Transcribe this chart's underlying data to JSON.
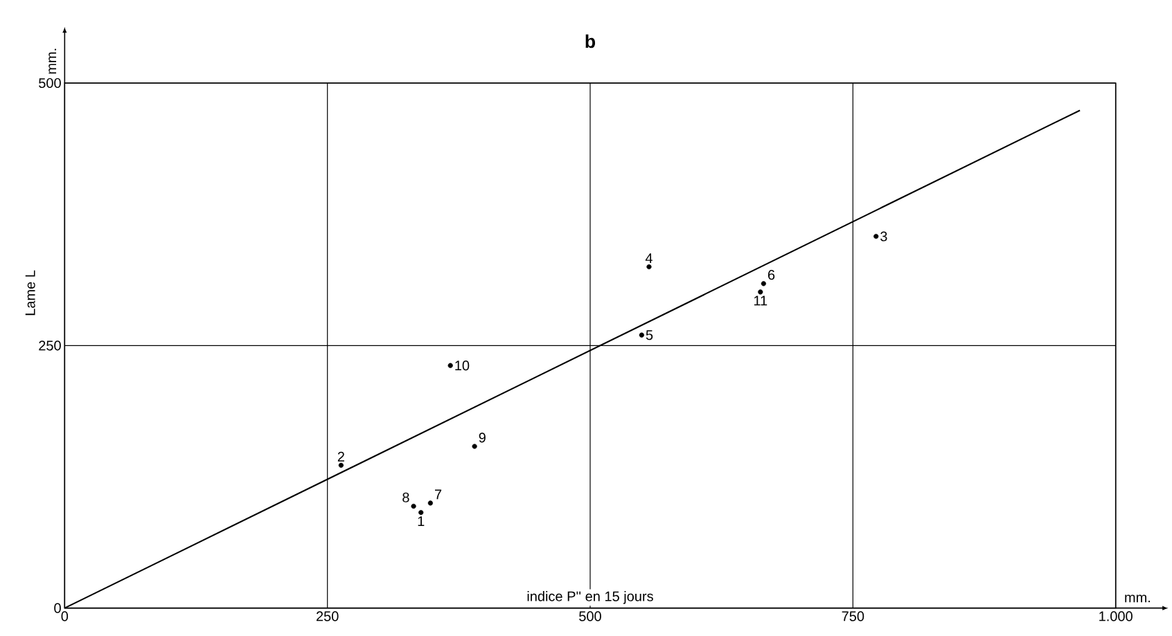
{
  "chart_data": {
    "type": "scatter",
    "title": "b",
    "xlabel": "indice P'' en 15 jours",
    "ylabel": "Lame L",
    "xlim": [
      0,
      1000
    ],
    "ylim": [
      0,
      500
    ],
    "xticks": [
      0,
      250,
      500,
      750,
      {
        "value": 1000,
        "label": "1.000"
      }
    ],
    "yticks": [
      0,
      250,
      500
    ],
    "grid": true,
    "marker": "circle",
    "series": [
      {
        "color": "#000000",
        "x": [
          339,
          263,
          772,
          556,
          549,
          665,
          348,
          332,
          390,
          367,
          662
        ],
        "values": [
          91,
          136,
          354,
          325,
          260,
          309,
          100,
          97,
          154,
          231,
          301
        ]
      },
      {
        "type": "line",
        "color": "#000000",
        "marker": "none",
        "line_style": "solid",
        "x": [
          0,
          966
        ],
        "values": [
          0,
          474
        ]
      }
    ],
    "annotations": [
      "mm.",
      "mm.",
      {
        "text": "1",
        "x": 339,
        "y": 91
      },
      {
        "text": "2",
        "x": 263,
        "y": 136
      },
      {
        "text": "3",
        "x": 772,
        "y": 354
      },
      {
        "text": "4",
        "x": 556,
        "y": 325
      },
      {
        "text": "5",
        "x": 549,
        "y": 260
      },
      {
        "text": "6",
        "x": 665,
        "y": 309
      },
      {
        "text": "7",
        "x": 348,
        "y": 100
      },
      {
        "text": "8",
        "x": 332,
        "y": 97
      },
      {
        "text": "9",
        "x": 390,
        "y": 154
      },
      {
        "text": "10",
        "x": 367,
        "y": 231
      },
      {
        "text": "11",
        "x": 662,
        "y": 301
      }
    ]
  }
}
